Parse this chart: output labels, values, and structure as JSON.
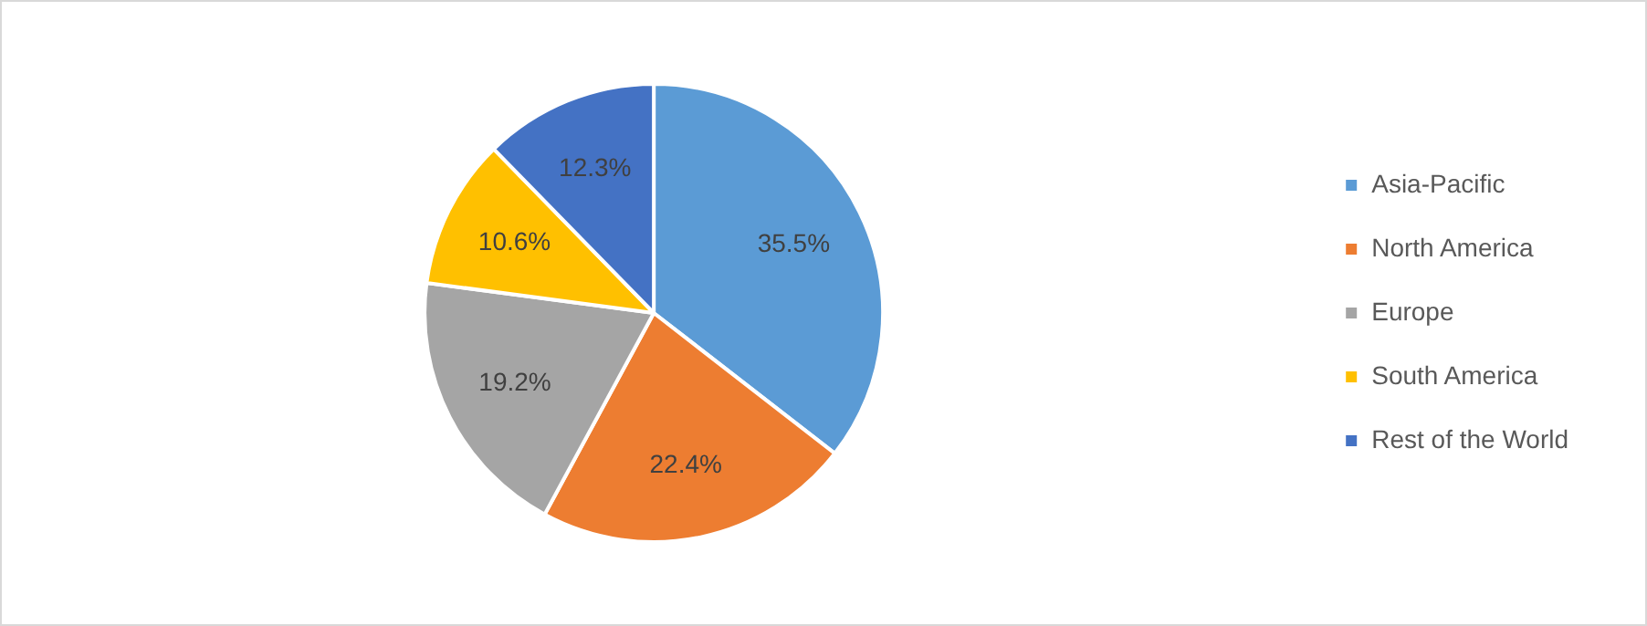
{
  "chart_data": {
    "type": "pie",
    "categories": [
      "Asia-Pacific",
      "North America",
      "Europe",
      "South America",
      "Rest of the World"
    ],
    "values": [
      35.5,
      22.4,
      19.2,
      10.6,
      12.3
    ],
    "colors": [
      "#5b9bd5",
      "#ed7d31",
      "#a5a5a5",
      "#ffc000",
      "#4472c4"
    ],
    "value_labels": [
      "35.5%",
      "22.4%",
      "19.2%",
      "10.6%",
      "12.3%"
    ],
    "legend": "right"
  }
}
